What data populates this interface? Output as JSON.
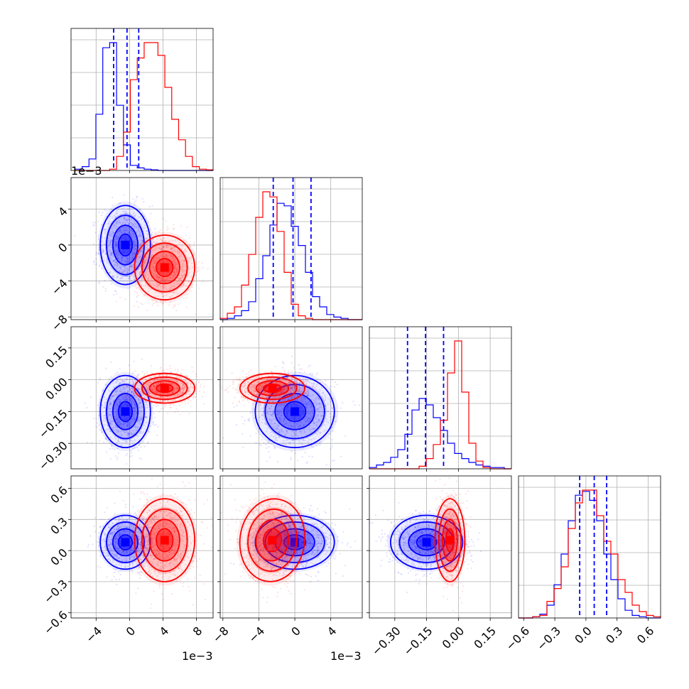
{
  "colors": {
    "blue": "#0000ff",
    "red": "#ff0000",
    "grid": "#b0b0b0"
  },
  "chart_data": {
    "type": "corner",
    "grid": true,
    "n_params": 4,
    "offsets": {
      "col0": "1e−3",
      "col1": "1e−3",
      "top_hist": "1e−3"
    },
    "axes": [
      {
        "ticks": [
          -4,
          0,
          4,
          8
        ],
        "tick_labels": [
          "−4",
          "0",
          "4",
          "8"
        ],
        "range": [
          -7,
          10
        ],
        "scale": 0.001
      },
      {
        "ticks": [
          -8,
          -4,
          0,
          4
        ],
        "tick_labels": [
          "−8",
          "−4",
          "0",
          "4"
        ],
        "range": [
          -8.3,
          7.5
        ],
        "scale": 0.001
      },
      {
        "ticks": [
          -0.3,
          -0.15,
          0.0,
          0.15
        ],
        "tick_labels": [
          "−0.30",
          "−0.15",
          "0.00",
          "0.15"
        ],
        "range": [
          -0.42,
          0.25
        ]
      },
      {
        "ticks": [
          -0.6,
          -0.3,
          0.0,
          0.3,
          0.6
        ],
        "tick_labels": [
          "−0.6",
          "−0.3",
          "0.0",
          "0.3",
          "0.6"
        ],
        "range": [
          -0.65,
          0.72
        ]
      }
    ],
    "series": [
      {
        "color": "#0000ff",
        "mean": [
          -0.5,
          0.0,
          -0.15,
          0.08
        ],
        "std": [
          1.5,
          2.2,
          0.085,
          0.13
        ],
        "corr": [
          [
            1,
            0,
            0,
            0
          ],
          [
            0,
            1,
            0,
            0
          ],
          [
            0,
            0,
            1,
            0
          ],
          [
            0,
            0,
            0,
            1
          ]
        ],
        "quantiles": [
          [
            -1.9,
            -0.3,
            1.1
          ],
          [
            -2.4,
            -0.2,
            1.8
          ],
          [
            -0.24,
            -0.155,
            -0.07
          ],
          [
            -0.06,
            0.08,
            0.2
          ]
        ]
      },
      {
        "color": "#ff0000",
        "mean": [
          4.2,
          -2.5,
          -0.04,
          0.1
        ],
        "std": [
          1.8,
          1.8,
          0.035,
          0.2
        ],
        "corr": [
          [
            1,
            0,
            0,
            0
          ],
          [
            0,
            1,
            0,
            -0.1
          ],
          [
            0,
            0,
            1,
            0
          ],
          [
            0,
            -0.1,
            0,
            1
          ]
        ]
      }
    ],
    "hist_bins": {
      "0": {
        "edges": [
          -6.5,
          10
        ],
        "blue": [
          0.01,
          0.03,
          0.09,
          0.44,
          0.96,
          1.0,
          0.51,
          0.2,
          0.04,
          0.02,
          0.01,
          0.005,
          0,
          0,
          0,
          0,
          0,
          0,
          0,
          0
        ],
        "red": [
          0,
          0,
          0,
          0,
          0,
          0.01,
          0.11,
          0.3,
          0.71,
          0.88,
          1.0,
          1.0,
          0.9,
          0.65,
          0.4,
          0.24,
          0.11,
          0.03,
          0.01,
          0.005
        ]
      },
      "1": {
        "edges": [
          -8.3,
          7.5
        ],
        "blue": [
          0,
          0.01,
          0.03,
          0.07,
          0.14,
          0.32,
          0.5,
          0.74,
          0.91,
          0.89,
          0.73,
          0.58,
          0.37,
          0.18,
          0.1,
          0.04,
          0.02,
          0.01,
          0,
          0
        ],
        "red": [
          0.01,
          0.05,
          0.1,
          0.27,
          0.51,
          0.8,
          1.0,
          0.96,
          0.69,
          0.37,
          0.12,
          0.03,
          0.01,
          0,
          0,
          0,
          0,
          0,
          0,
          0
        ]
      },
      "2": {
        "edges": [
          -0.42,
          0.25
        ],
        "blue": [
          0.01,
          0.03,
          0.05,
          0.09,
          0.15,
          0.27,
          0.46,
          0.55,
          0.5,
          0.4,
          0.3,
          0.2,
          0.12,
          0.08,
          0.05,
          0.03,
          0.02,
          0.01,
          0.01,
          0
        ],
        "red": [
          0,
          0,
          0,
          0,
          0,
          0,
          0,
          0.02,
          0.08,
          0.19,
          0.38,
          0.75,
          1.0,
          0.6,
          0.2,
          0.06,
          0.01,
          0,
          0,
          0
        ]
      },
      "3": {
        "edges": [
          -0.65,
          0.72
        ],
        "blue": [
          0,
          0,
          0.01,
          0.03,
          0.1,
          0.26,
          0.5,
          0.76,
          0.96,
          0.99,
          0.92,
          0.76,
          0.5,
          0.3,
          0.15,
          0.06,
          0.02,
          0.01,
          0,
          0
        ],
        "red": [
          0,
          0,
          0.01,
          0.02,
          0.13,
          0.23,
          0.4,
          0.7,
          0.9,
          1.0,
          1.0,
          0.8,
          0.6,
          0.5,
          0.3,
          0.2,
          0.1,
          0.05,
          0.02,
          0.01
        ]
      }
    }
  }
}
